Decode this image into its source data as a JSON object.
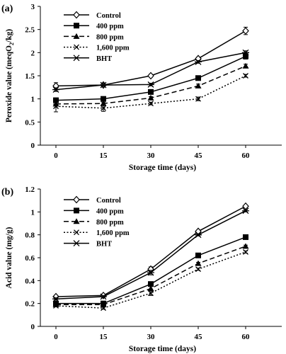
{
  "chart_data": [
    {
      "panel_label": "(a)",
      "type": "line",
      "x": [
        0,
        15,
        30,
        45,
        60
      ],
      "xlabel": "Storage time (days)",
      "ylabel_pre": "Peroxide value (meqO",
      "ylabel_sub": "2",
      "ylabel_post": "/kg)",
      "ylim": [
        0,
        3
      ],
      "yticks": [
        "0",
        "0.5",
        "1",
        "1.5",
        "2",
        "2.5",
        "3"
      ],
      "xticks": [
        "0",
        "15",
        "30",
        "45",
        "60"
      ],
      "legend_position": "top-left",
      "series": [
        {
          "name": "Control",
          "style": "diamond-solid",
          "values": [
            1.28,
            1.3,
            1.5,
            1.87,
            2.47
          ],
          "errors": [
            0.07,
            0.04,
            0.03,
            0.03,
            0.08
          ]
        },
        {
          "name": "400 ppm",
          "style": "square-solid",
          "values": [
            0.97,
            1.0,
            1.15,
            1.45,
            1.92
          ],
          "errors": [
            0.05,
            0.03,
            0.03,
            0.04,
            0.06
          ]
        },
        {
          "name": "800 ppm",
          "style": "triangle-dashed",
          "values": [
            0.89,
            0.9,
            1.02,
            1.28,
            1.71
          ],
          "errors": [
            0.04,
            0.03,
            0.03,
            0.04,
            0.04
          ]
        },
        {
          "name": "1,600 ppm",
          "style": "x-dotted",
          "values": [
            0.84,
            0.8,
            0.9,
            1.0,
            1.5
          ],
          "errors": [
            0.12,
            0.07,
            0.03,
            0.04,
            0.03
          ]
        },
        {
          "name": "BHT",
          "style": "star-solid",
          "values": [
            1.2,
            1.3,
            1.31,
            1.8,
            2.0
          ],
          "errors": [
            0.04,
            0.04,
            0.03,
            0.03,
            0.04
          ]
        }
      ]
    },
    {
      "panel_label": "(b)",
      "type": "line",
      "x": [
        0,
        15,
        30,
        45,
        60
      ],
      "xlabel": "Storage time (days)",
      "ylabel_pre": "Acid value (mg/g)",
      "ylabel_sub": "",
      "ylabel_post": "",
      "ylim": [
        0,
        1.2
      ],
      "yticks": [
        "0",
        "0.2",
        "0.4",
        "0.6",
        "0.8",
        "1",
        "1.2"
      ],
      "xticks": [
        "0",
        "15",
        "30",
        "45",
        "60"
      ],
      "legend_position": "top-left",
      "series": [
        {
          "name": "Control",
          "style": "diamond-solid",
          "values": [
            0.26,
            0.27,
            0.5,
            0.83,
            1.05
          ],
          "errors": [
            0.01,
            0.01,
            0.02,
            0.01,
            0.01
          ]
        },
        {
          "name": "400 ppm",
          "style": "square-solid",
          "values": [
            0.2,
            0.2,
            0.37,
            0.62,
            0.78
          ],
          "errors": [
            0.01,
            0.01,
            0.02,
            0.02,
            0.02
          ]
        },
        {
          "name": "800 ppm",
          "style": "triangle-dashed",
          "values": [
            0.19,
            0.19,
            0.33,
            0.55,
            0.7
          ],
          "errors": [
            0.01,
            0.01,
            0.02,
            0.01,
            0.01
          ]
        },
        {
          "name": "1,600 ppm",
          "style": "x-dotted",
          "values": [
            0.18,
            0.16,
            0.29,
            0.5,
            0.65
          ],
          "errors": [
            0.01,
            0.01,
            0.02,
            0.01,
            0.01
          ]
        },
        {
          "name": "BHT",
          "style": "star-solid",
          "values": [
            0.24,
            0.26,
            0.47,
            0.8,
            1.01
          ],
          "errors": [
            0.01,
            0.01,
            0.02,
            0.01,
            0.01
          ]
        }
      ]
    }
  ]
}
